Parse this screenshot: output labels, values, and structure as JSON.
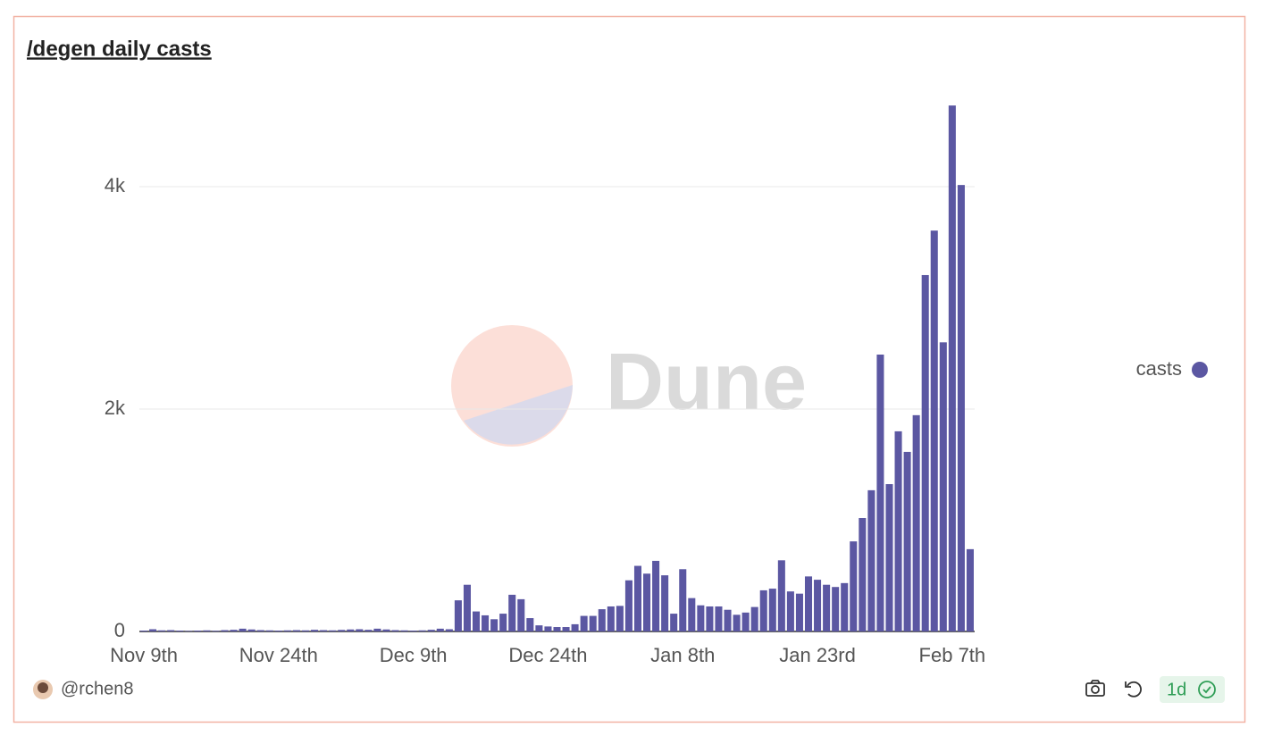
{
  "title": "/degen daily casts",
  "author": "@rchen8",
  "refresh": "1d",
  "watermark": "Dune",
  "chart_data": {
    "type": "bar",
    "categories": [
      "Nov 9th",
      null,
      null,
      null,
      null,
      null,
      null,
      null,
      null,
      null,
      null,
      null,
      null,
      null,
      null,
      "Nov 24th",
      null,
      null,
      null,
      null,
      null,
      null,
      null,
      null,
      null,
      null,
      null,
      null,
      null,
      null,
      "Dec 9th",
      null,
      null,
      null,
      null,
      null,
      null,
      null,
      null,
      null,
      null,
      null,
      null,
      null,
      null,
      "Dec 24th",
      null,
      null,
      null,
      null,
      null,
      null,
      null,
      null,
      null,
      null,
      null,
      null,
      null,
      null,
      "Jan 8th",
      null,
      null,
      null,
      null,
      null,
      null,
      null,
      null,
      null,
      null,
      null,
      null,
      null,
      null,
      "Jan 23rd",
      null,
      null,
      null,
      null,
      null,
      null,
      null,
      null,
      null,
      null,
      null,
      null,
      null,
      null,
      "Feb 7th",
      null,
      null
    ],
    "series": [
      {
        "name": "casts",
        "color": "#5b57a2",
        "values": [
          8,
          20,
          10,
          12,
          8,
          5,
          8,
          10,
          6,
          12,
          15,
          25,
          18,
          12,
          10,
          8,
          10,
          12,
          10,
          15,
          12,
          10,
          14,
          18,
          20,
          15,
          25,
          18,
          12,
          10,
          8,
          10,
          15,
          25,
          20,
          280,
          420,
          180,
          145,
          110,
          160,
          330,
          290,
          120,
          55,
          45,
          40,
          40,
          65,
          140,
          140,
          200,
          225,
          230,
          460,
          590,
          520,
          635,
          505,
          160,
          560,
          300,
          235,
          225,
          225,
          195,
          150,
          170,
          220,
          370,
          385,
          640,
          360,
          340,
          495,
          465,
          420,
          400,
          435,
          810,
          1020,
          1270,
          2490,
          1325,
          1800,
          1615,
          1945,
          3205,
          3605,
          2600,
          4730,
          4015,
          740
        ]
      }
    ],
    "ylim": [
      0,
      4800
    ],
    "yticks": [
      0,
      {
        "value": 2000,
        "label": "2k"
      },
      {
        "value": 4000,
        "label": "4k"
      }
    ],
    "grid": true,
    "legend": "right"
  }
}
